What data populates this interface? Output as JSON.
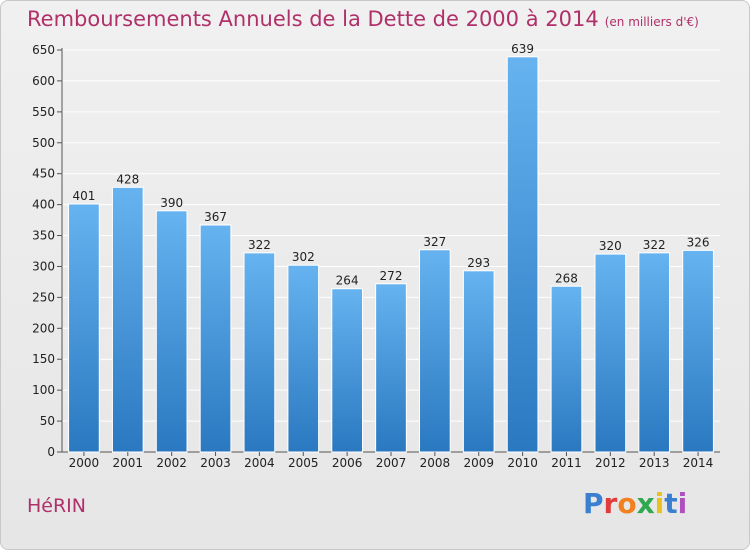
{
  "title": "Remboursements Annuels de la Dette de 2000 à 2014",
  "unit": "(en milliers d'€)",
  "commune": "HéRIN",
  "logo": {
    "text": "Proxiti",
    "colors": [
      "#3a7fd0",
      "#e03c3c",
      "#f08020",
      "#2fa84f",
      "#e8c020",
      "#3a7fd0",
      "#b04fc0"
    ]
  },
  "colors": {
    "bar_top": "#66b3f0",
    "bar_bottom": "#2a78c0",
    "title": "#b0306a",
    "grid": "#ffffff"
  },
  "chart_data": {
    "type": "bar",
    "categories": [
      "2000",
      "2001",
      "2002",
      "2003",
      "2004",
      "2005",
      "2006",
      "2007",
      "2008",
      "2009",
      "2010",
      "2011",
      "2012",
      "2013",
      "2014"
    ],
    "values": [
      401,
      428,
      390,
      367,
      322,
      302,
      264,
      272,
      327,
      293,
      639,
      268,
      320,
      322,
      326
    ],
    "ylim": [
      0,
      650
    ],
    "yticks": [
      0,
      50,
      100,
      150,
      200,
      250,
      300,
      350,
      400,
      450,
      500,
      550,
      600,
      650
    ],
    "grid": true
  }
}
